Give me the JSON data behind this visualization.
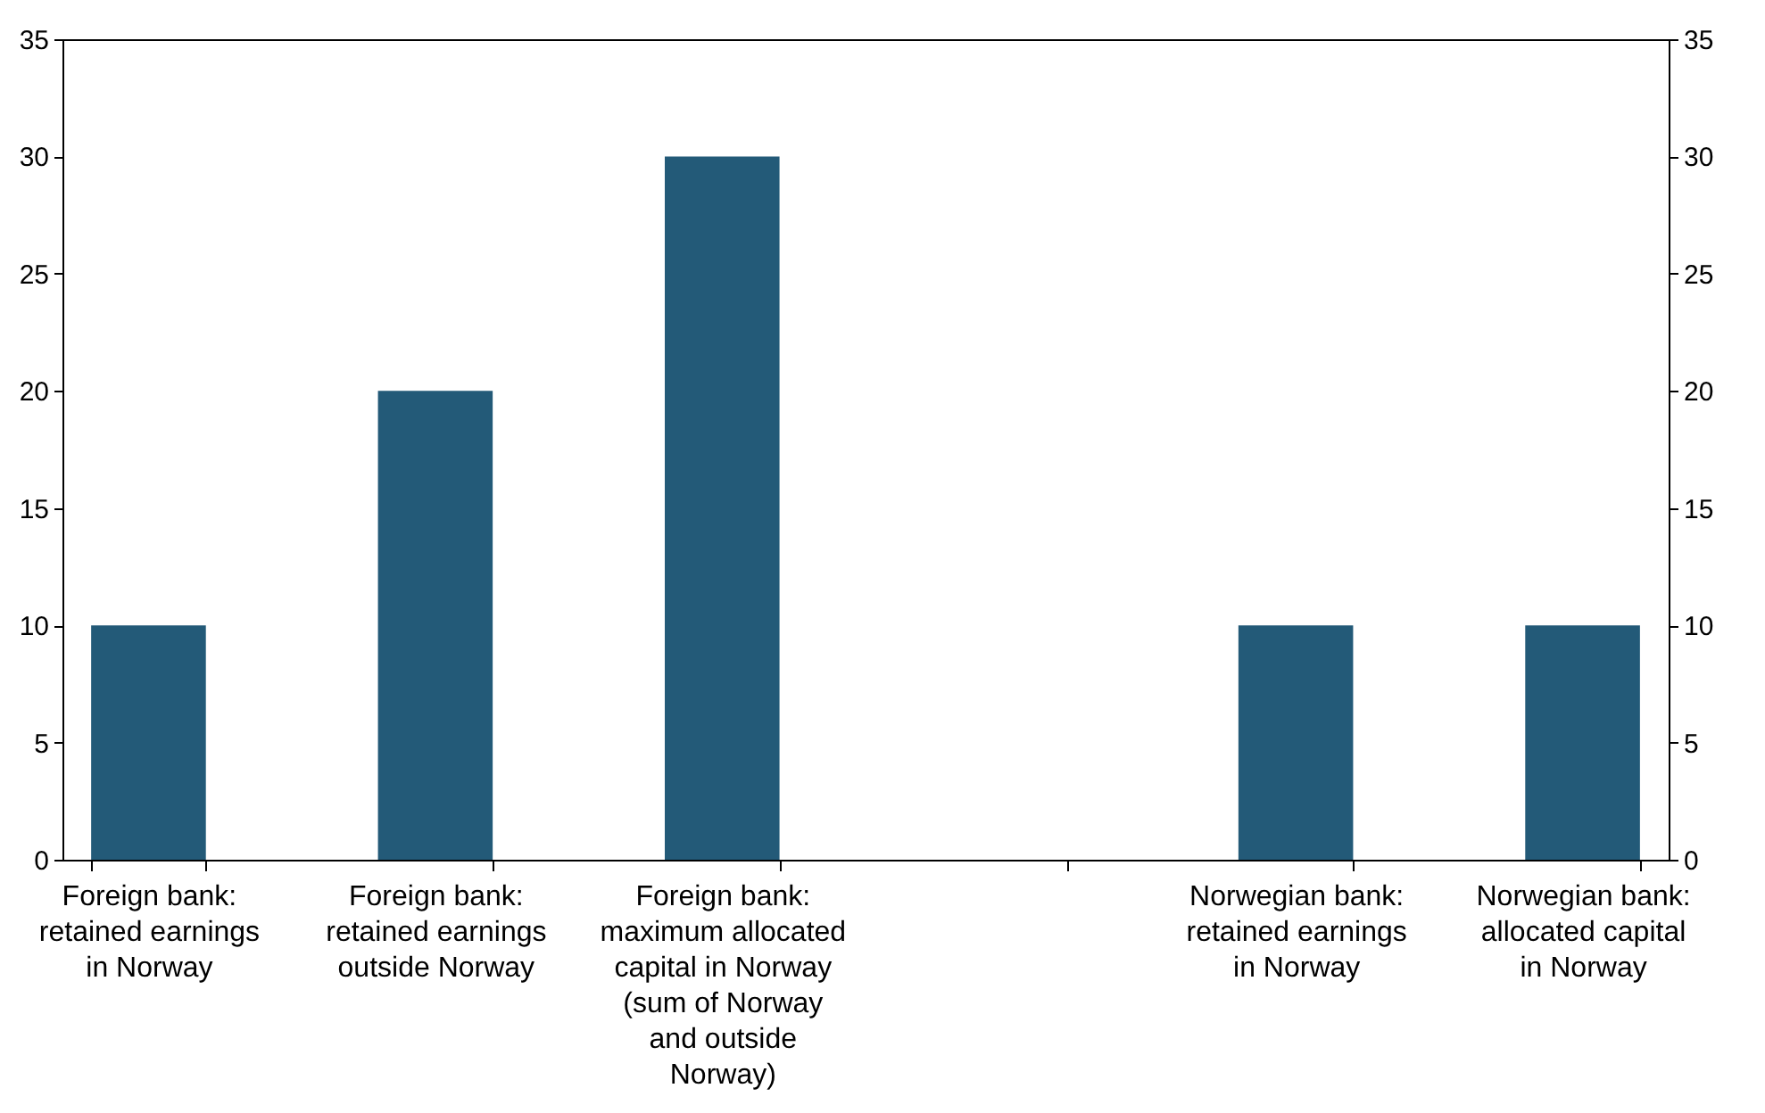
{
  "chart_data": {
    "type": "bar",
    "categories": [
      "Foreign bank: retained earnings in Norway",
      "Foreign bank: retained earnings outside Norway",
      "Foreign bank: maximum allocated capital in Norway (sum of Norway and outside Norway)",
      null,
      "Norwegian bank: retained earnings in Norway",
      "Norwegian bank: allocated capital in Norway"
    ],
    "values": [
      10,
      20,
      30,
      null,
      10,
      10
    ],
    "color": "#235a78",
    "ylim": [
      0,
      35
    ],
    "yticks": [
      0,
      5,
      10,
      15,
      20,
      25,
      30,
      35
    ],
    "y2lim": [
      0,
      35
    ],
    "y2ticks": [
      0,
      5,
      10,
      15,
      20,
      25,
      30,
      35
    ]
  }
}
